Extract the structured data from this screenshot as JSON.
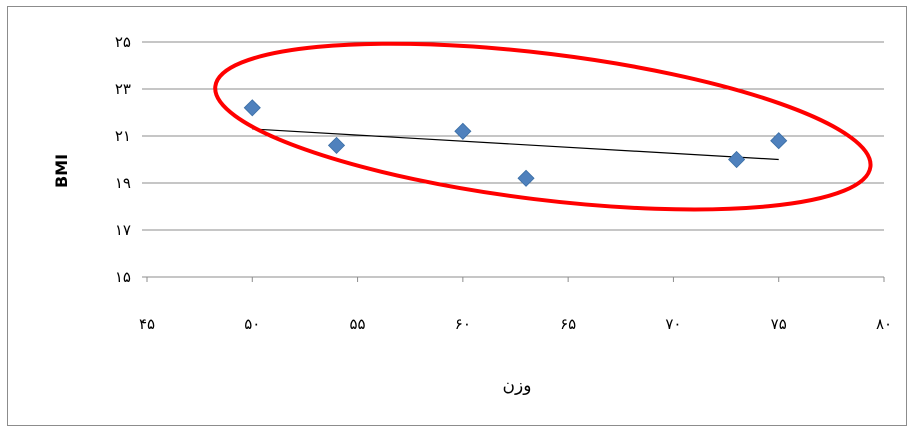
{
  "chart_data": {
    "type": "scatter",
    "xlabel": "وزن",
    "ylabel": "BMI",
    "xlim": [
      45,
      80
    ],
    "ylim": [
      15,
      25
    ],
    "x_ticks": [
      45,
      50,
      55,
      60,
      65,
      70,
      75,
      80
    ],
    "x_tick_labels": [
      "۴۵",
      "۵۰",
      "۵۵",
      "۶۰",
      "۶۵",
      "۷۰",
      "۷۵",
      "۸۰"
    ],
    "y_ticks": [
      15,
      17,
      19,
      21,
      23,
      25
    ],
    "y_tick_labels": [
      "۱۵",
      "۱۷",
      "۱۹",
      "۲۱",
      "۲۳",
      "۲۵"
    ],
    "grid": "horizontal",
    "legend": "none",
    "series": [
      {
        "points": [
          {
            "x": 50,
            "y": 22.2
          },
          {
            "x": 54,
            "y": 20.6
          },
          {
            "x": 60,
            "y": 21.2
          },
          {
            "x": 63,
            "y": 19.2
          },
          {
            "x": 73,
            "y": 20.0
          },
          {
            "x": 75,
            "y": 20.8
          }
        ],
        "marker": "diamond",
        "color": "#4F81BD"
      }
    ],
    "trendline": {
      "x": [
        50,
        75
      ],
      "y": [
        21.3,
        20.0
      ],
      "color": "#000000"
    },
    "annotation": {
      "shape": "ellipse",
      "color": "#FF0000"
    }
  }
}
